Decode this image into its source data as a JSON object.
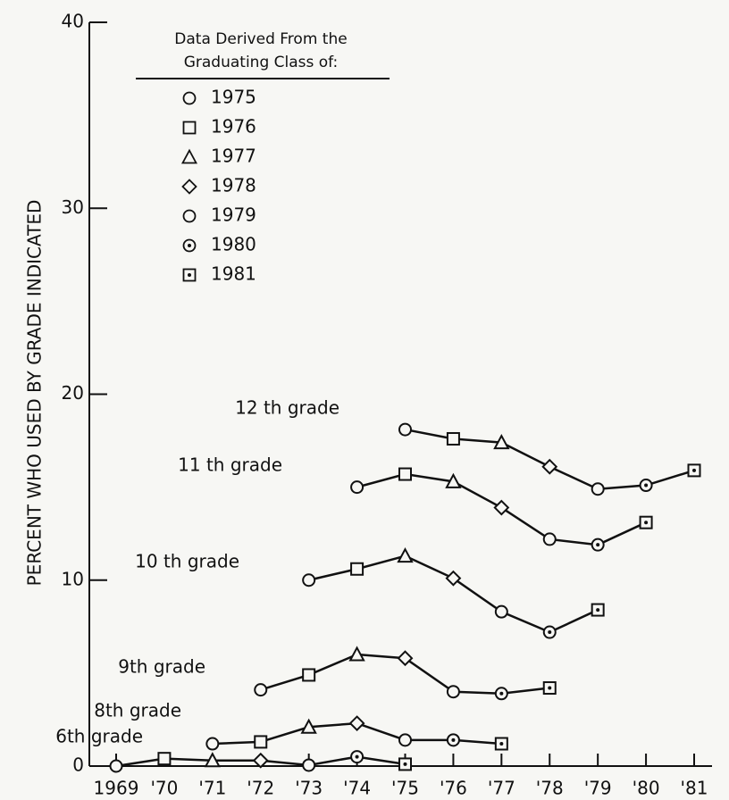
{
  "chart_data": {
    "type": "line",
    "y_label": "PERCENT WHO USED BY GRADE INDICATED",
    "legend_title": [
      "Data Derived From the",
      "Graduating Class of:"
    ],
    "legend": [
      {
        "label": "1975",
        "marker": "circle"
      },
      {
        "label": "1976",
        "marker": "square"
      },
      {
        "label": "1977",
        "marker": "triangle"
      },
      {
        "label": "1978",
        "marker": "diamond"
      },
      {
        "label": "1979",
        "marker": "circle"
      },
      {
        "label": "1980",
        "marker": "circle-dot"
      },
      {
        "label": "1981",
        "marker": "square-dot"
      }
    ],
    "x": [
      1969,
      1970,
      1971,
      1972,
      1973,
      1974,
      1975,
      1976,
      1977,
      1978,
      1979,
      1980,
      1981
    ],
    "xlim": [
      1969,
      1981
    ],
    "xticks": [
      1969,
      {
        "value": 1970,
        "label": "'70"
      },
      {
        "value": 1971,
        "label": "'71"
      },
      {
        "value": 1972,
        "label": "'72"
      },
      {
        "value": 1973,
        "label": "'73"
      },
      {
        "value": 1974,
        "label": "'74"
      },
      {
        "value": 1975,
        "label": "'75"
      },
      {
        "value": 1976,
        "label": "'76"
      },
      {
        "value": 1977,
        "label": "'77"
      },
      {
        "value": 1978,
        "label": "'78"
      },
      {
        "value": 1979,
        "label": "'79"
      },
      {
        "value": 1980,
        "label": "'80"
      },
      {
        "value": 1981,
        "label": "'81"
      }
    ],
    "ylim": [
      0,
      40
    ],
    "yticks": [
      0,
      10,
      20,
      30,
      40
    ],
    "series": [
      {
        "name": "12 th grade",
        "color": "#111111",
        "values": [
          null,
          null,
          null,
          null,
          null,
          null,
          18.1,
          17.6,
          17.4,
          16.1,
          14.9,
          15.1,
          15.9
        ]
      },
      {
        "name": "11 th grade",
        "color": "#111111",
        "values": [
          null,
          null,
          null,
          null,
          null,
          15.0,
          15.7,
          15.3,
          13.9,
          12.2,
          11.9,
          13.1,
          null
        ]
      },
      {
        "name": "10 th grade",
        "color": "#111111",
        "values": [
          null,
          null,
          null,
          null,
          10.0,
          10.6,
          11.3,
          10.1,
          8.3,
          7.2,
          8.4,
          null,
          null
        ]
      },
      {
        "name": "9th grade",
        "color": "#111111",
        "values": [
          null,
          null,
          null,
          4.1,
          4.9,
          6.0,
          5.8,
          4.0,
          3.9,
          4.2,
          null,
          null,
          null
        ]
      },
      {
        "name": "8th grade",
        "color": "#111111",
        "values": [
          null,
          null,
          1.2,
          1.3,
          2.1,
          2.3,
          1.4,
          1.4,
          1.2,
          null,
          null,
          null,
          null
        ]
      },
      {
        "name": "6th grade",
        "color": "#111111",
        "values": [
          0,
          0.4,
          0.3,
          0.3,
          0.05,
          0.5,
          0.1,
          null,
          null,
          null,
          null,
          null,
          null
        ]
      }
    ]
  }
}
